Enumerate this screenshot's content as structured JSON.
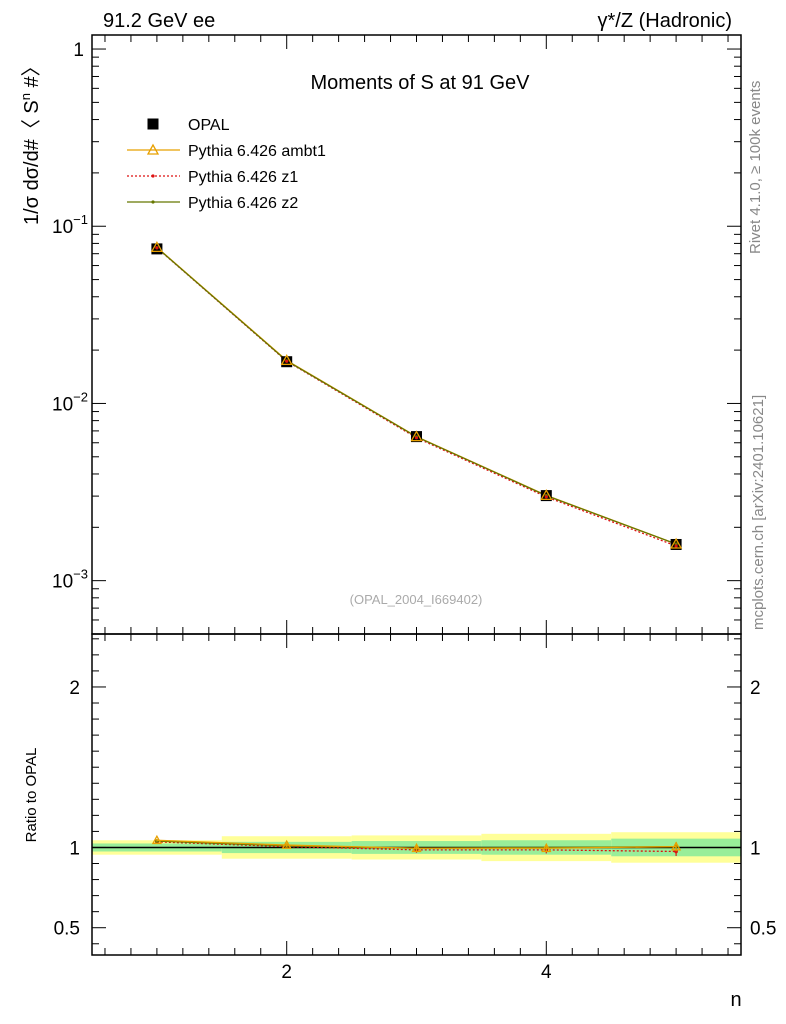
{
  "header": {
    "left": "91.2 GeV ee",
    "right": "γ*/Z (Hadronic)"
  },
  "side_labels": {
    "rivet": "Rivet 4.1.0, ≥ 100k events",
    "mcplots": "mcplots.cern.ch [arXiv:2401.10621]"
  },
  "chart_data": [
    {
      "type": "line",
      "panel": "main",
      "title": "Moments of S at 91 GeV",
      "ylabel_parts": {
        "prefix": "1/σ  dσ/d#〈 S",
        "sup": "n",
        "suffix": " #〉"
      },
      "yscale": "log",
      "ylim": [
        0.0005,
        1.2
      ],
      "xlim": [
        0.5,
        5.5
      ],
      "analysis_tag": "(OPAL_2004_I669402)",
      "yticks": [
        {
          "v": 1,
          "base": "1",
          "exp": ""
        },
        {
          "v": 0.1,
          "base": "10",
          "exp": "−1"
        },
        {
          "v": 0.01,
          "base": "10",
          "exp": "−2"
        },
        {
          "v": 0.001,
          "base": "10",
          "exp": "−3"
        }
      ],
      "x": [
        1,
        2,
        3,
        4,
        5
      ],
      "series": [
        {
          "name": "OPAL",
          "values": [
            0.0745,
            0.0172,
            0.0065,
            0.00302,
            0.0016
          ],
          "color": "#000000",
          "marker": "square"
        },
        {
          "name": "Pythia 6.426 ambt1",
          "values": [
            0.076,
            0.0175,
            0.0065,
            0.00303,
            0.00161
          ],
          "color": "#e8a000",
          "marker": "triangle"
        },
        {
          "name": "Pythia 6.426 z1",
          "values": [
            0.0755,
            0.0173,
            0.0064,
            0.00297,
            0.00157
          ],
          "color": "#dd1111",
          "marker": "dot",
          "dash": "2,2"
        },
        {
          "name": "Pythia 6.426 z2",
          "values": [
            0.0757,
            0.0174,
            0.00648,
            0.00302,
            0.00161
          ],
          "color": "#667700",
          "marker": "dot"
        }
      ]
    },
    {
      "type": "line",
      "panel": "ratio",
      "ylabel": "Ratio to OPAL",
      "xlabel": "n",
      "yscale": "linear",
      "ylim": [
        0.33,
        2.33
      ],
      "xlim": [
        0.5,
        5.5
      ],
      "yticks": [
        {
          "v": 0.5,
          "label": "0.5"
        },
        {
          "v": 1,
          "label": "1"
        },
        {
          "v": 2,
          "label": "2"
        }
      ],
      "xticks": [
        {
          "v": 2,
          "label": "2"
        },
        {
          "v": 4,
          "label": "4"
        }
      ],
      "bands": [
        {
          "x0": 0.5,
          "x1": 1.5,
          "stat": [
            0.975,
            1.025
          ],
          "total": [
            0.955,
            1.045
          ]
        },
        {
          "x0": 1.5,
          "x1": 2.5,
          "stat": [
            0.965,
            1.035
          ],
          "total": [
            0.93,
            1.07
          ]
        },
        {
          "x0": 2.5,
          "x1": 3.5,
          "stat": [
            0.96,
            1.04
          ],
          "total": [
            0.925,
            1.075
          ]
        },
        {
          "x0": 3.5,
          "x1": 4.5,
          "stat": [
            0.955,
            1.045
          ],
          "total": [
            0.915,
            1.085
          ]
        },
        {
          "x0": 4.5,
          "x1": 5.5,
          "stat": [
            0.945,
            1.055
          ],
          "total": [
            0.905,
            1.095
          ]
        }
      ],
      "x": [
        1,
        2,
        3,
        4,
        5
      ],
      "series": [
        {
          "name": "Pythia 6.426 ambt1",
          "values": [
            1.045,
            1.015,
            0.995,
            0.995,
            1.005
          ],
          "err": [
            0.008,
            0.012,
            0.018,
            0.022,
            0.028
          ],
          "color": "#e8a000",
          "marker": "triangle"
        },
        {
          "name": "Pythia 6.426 z1",
          "values": [
            1.035,
            1.005,
            0.985,
            0.985,
            0.975
          ],
          "err": [
            0.008,
            0.012,
            0.018,
            0.022,
            0.028
          ],
          "color": "#dd1111",
          "marker": "dot",
          "dash": "2,2"
        },
        {
          "name": "Pythia 6.426 z2",
          "values": [
            1.04,
            1.01,
            0.995,
            1.0,
            1.005
          ],
          "err": [
            0.008,
            0.012,
            0.018,
            0.022,
            0.028
          ],
          "color": "#667700",
          "marker": "dot"
        }
      ]
    }
  ],
  "colors": {
    "band_stat": "#99ee99",
    "band_total": "#ffff99"
  }
}
